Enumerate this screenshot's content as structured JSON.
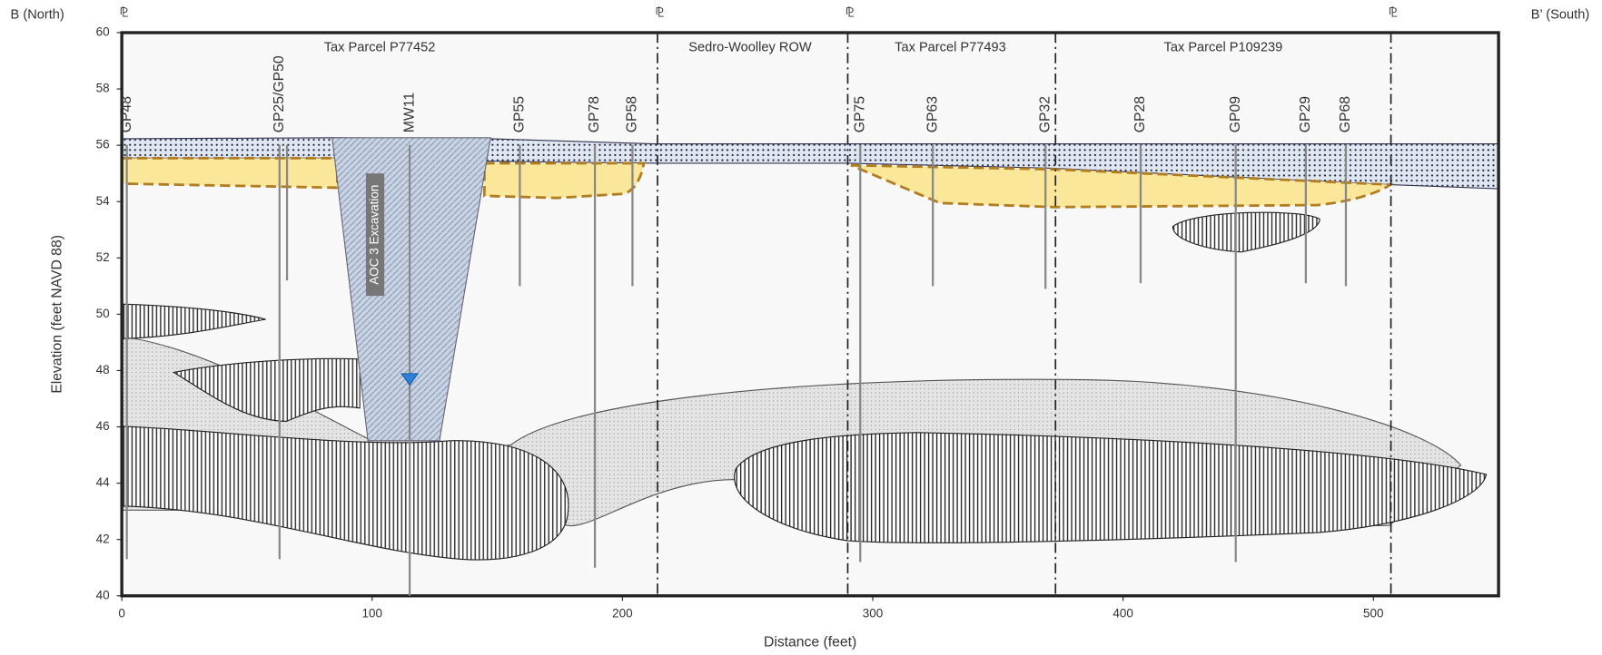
{
  "chart_data": {
    "type": "cross-section",
    "left_label": "B (North)",
    "right_label": "B’ (South)",
    "xlabel": "Distance (feet)",
    "ylabel": "Elevation (feet NAVD 88)",
    "xlim": [
      0,
      550
    ],
    "ylim": [
      40,
      60
    ],
    "xticks": [
      0,
      100,
      200,
      300,
      400,
      500
    ],
    "yticks": [
      40,
      42,
      44,
      46,
      48,
      50,
      52,
      54,
      56,
      58,
      60
    ],
    "parcels": [
      {
        "name": "Tax Parcel P77452",
        "x": 103
      },
      {
        "name": "Sedro-Woolley ROW",
        "x": 251
      },
      {
        "name": "Tax Parcel P77493",
        "x": 331
      },
      {
        "name": "Tax Parcel P109239",
        "x": 440
      }
    ],
    "property_lines": [
      {
        "x": 0,
        "label": "⅊"
      },
      {
        "x": 214,
        "label": "⅊"
      },
      {
        "x": 290,
        "label": "⅊"
      },
      {
        "x": 373,
        "label": null
      },
      {
        "x": 507,
        "label": "⅊"
      }
    ],
    "excavation_label": "AOC 3 Excavation",
    "borings": [
      {
        "name": "GP48",
        "x": 2,
        "bottom": 41.3
      },
      {
        "name": "GP25/GP50",
        "x": 63,
        "bottom": 41.3
      },
      {
        "name": null,
        "x": 66,
        "bottom": 51.2
      },
      {
        "name": "MW11",
        "x": 115,
        "bottom": 40,
        "water_level": 47.6
      },
      {
        "name": "GP55",
        "x": 159,
        "bottom": 51
      },
      {
        "name": "GP78",
        "x": 189,
        "bottom": 41
      },
      {
        "name": "GP58",
        "x": 204,
        "bottom": 51
      },
      {
        "name": "GP75",
        "x": 295,
        "bottom": 41.2
      },
      {
        "name": "GP63",
        "x": 324,
        "bottom": 51
      },
      {
        "name": "GP32",
        "x": 369,
        "bottom": 50.9
      },
      {
        "name": "GP28",
        "x": 407,
        "bottom": 51.1
      },
      {
        "name": "GP09",
        "x": 445,
        "bottom": 41.2
      },
      {
        "name": "GP29",
        "x": 473,
        "bottom": 51.1
      },
      {
        "name": "GP68",
        "x": 489,
        "bottom": 51
      }
    ]
  }
}
